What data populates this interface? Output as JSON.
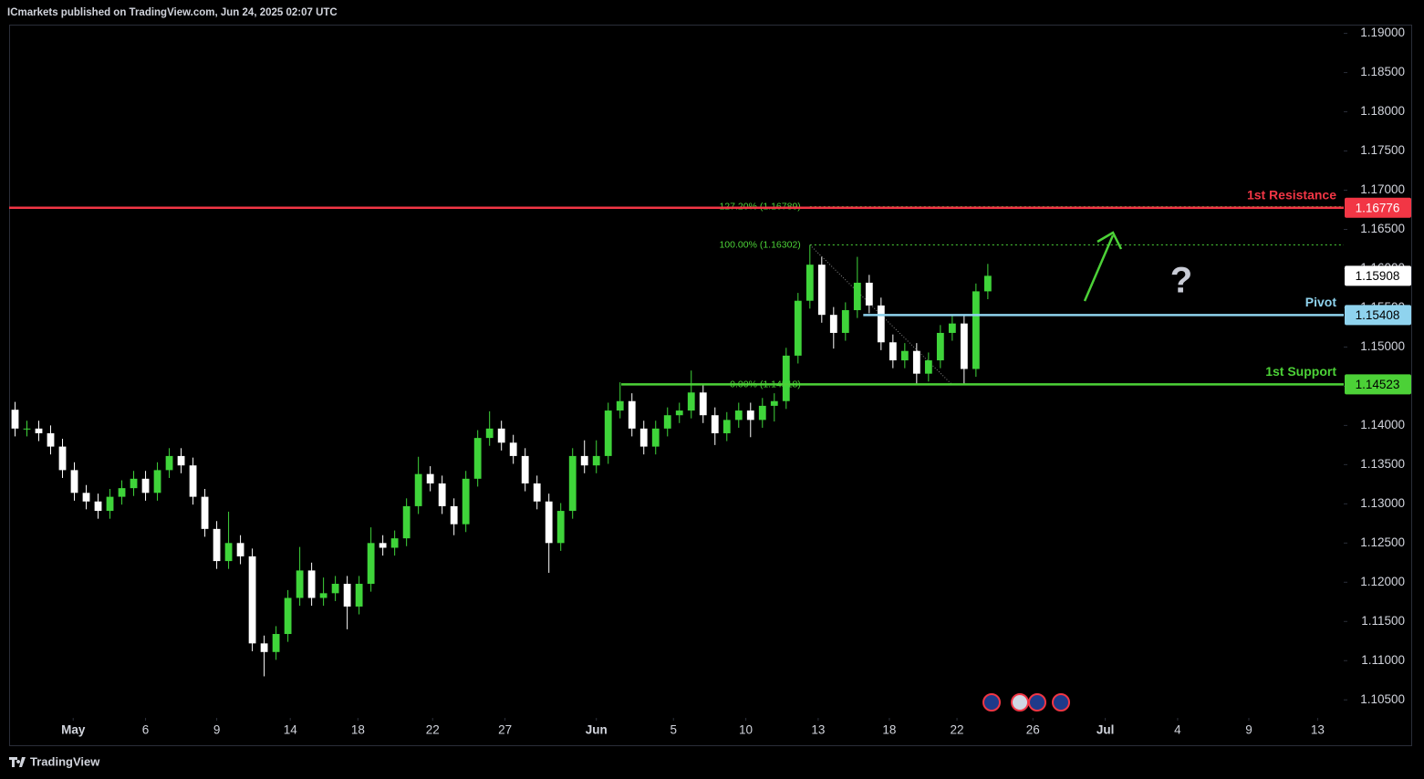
{
  "chart_data": {
    "type": "candlestick",
    "title": "ICmarkets published on TradingView.com, Jun 24, 2025 02:07 UTC",
    "brand": "TradingView",
    "annotation": "?",
    "up_color": "#3fd43a",
    "down_color": "#ffffff",
    "x": [
      0,
      1,
      2,
      3,
      4,
      5,
      6,
      7,
      8,
      9,
      10,
      11,
      12,
      13,
      14,
      15,
      16,
      17,
      18,
      19,
      20,
      21,
      22,
      23,
      24,
      25,
      26,
      27,
      28,
      29,
      30,
      31,
      32,
      33,
      34,
      35,
      36,
      37,
      38,
      39,
      40,
      41,
      42,
      43,
      44,
      45,
      46,
      47,
      48,
      49,
      50,
      51,
      52,
      53,
      54,
      55,
      56,
      57,
      58,
      59,
      60,
      61,
      62,
      63,
      64,
      65,
      66,
      67,
      68,
      69,
      70,
      71,
      72,
      73,
      74,
      75,
      76,
      77,
      78,
      79,
      80,
      81,
      82
    ],
    "open": [
      1.142,
      1.1396,
      1.1396,
      1.139,
      1.1373,
      1.1343,
      1.1314,
      1.1303,
      1.1291,
      1.1309,
      1.132,
      1.1332,
      1.1314,
      1.1343,
      1.1361,
      1.1349,
      1.1309,
      1.1268,
      1.1227,
      1.125,
      1.1233,
      1.1122,
      1.1111,
      1.1134,
      1.118,
      1.1215,
      1.118,
      1.1186,
      1.1198,
      1.1169,
      1.1198,
      1.125,
      1.1244,
      1.1256,
      1.1297,
      1.1338,
      1.1326,
      1.1297,
      1.1274,
      1.1332,
      1.1384,
      1.1396,
      1.1378,
      1.1361,
      1.1326,
      1.1303,
      1.125,
      1.1291,
      1.1361,
      1.1349,
      1.1361,
      1.1419,
      1.1431,
      1.1396,
      1.1373,
      1.1396,
      1.1413,
      1.1419,
      1.1442,
      1.1413,
      1.139,
      1.1407,
      1.1419,
      1.1407,
      1.1425,
      1.1431,
      1.1489,
      1.1559,
      1.1605,
      1.1541,
      1.1518,
      1.1547,
      1.1582,
      1.1553,
      1.1506,
      1.1483,
      1.1495,
      1.1466,
      1.1483,
      1.1518,
      1.153,
      1.1472,
      1.1571
    ],
    "high": [
      1.143,
      1.1406,
      1.1406,
      1.14,
      1.1383,
      1.1353,
      1.1324,
      1.1313,
      1.1319,
      1.133,
      1.1342,
      1.1342,
      1.1353,
      1.1371,
      1.1371,
      1.1359,
      1.1319,
      1.1278,
      1.129,
      1.126,
      1.1243,
      1.1132,
      1.1144,
      1.119,
      1.1245,
      1.1225,
      1.1206,
      1.1208,
      1.1208,
      1.1208,
      1.127,
      1.126,
      1.1266,
      1.1307,
      1.136,
      1.1348,
      1.1336,
      1.1307,
      1.1342,
      1.1394,
      1.1418,
      1.1406,
      1.1388,
      1.1371,
      1.1336,
      1.1313,
      1.1301,
      1.1371,
      1.1381,
      1.1381,
      1.1429,
      1.1455,
      1.1441,
      1.1406,
      1.1406,
      1.1423,
      1.1429,
      1.147,
      1.1452,
      1.1423,
      1.1417,
      1.1429,
      1.1429,
      1.1435,
      1.1441,
      1.1499,
      1.1569,
      1.163,
      1.1615,
      1.1551,
      1.1557,
      1.1615,
      1.1592,
      1.1563,
      1.1516,
      1.1505,
      1.1505,
      1.1493,
      1.1528,
      1.1541,
      1.154,
      1.1581,
      1.1606
    ],
    "low": [
      1.1386,
      1.1386,
      1.138,
      1.1363,
      1.1333,
      1.1304,
      1.1293,
      1.1281,
      1.1281,
      1.1299,
      1.131,
      1.1304,
      1.1304,
      1.1333,
      1.1339,
      1.1299,
      1.1258,
      1.1217,
      1.1217,
      1.1223,
      1.1112,
      1.108,
      1.1101,
      1.1124,
      1.117,
      1.117,
      1.117,
      1.1176,
      1.114,
      1.1159,
      1.1188,
      1.1234,
      1.1234,
      1.1246,
      1.1287,
      1.1316,
      1.1287,
      1.126,
      1.1264,
      1.1322,
      1.1374,
      1.1368,
      1.1351,
      1.1316,
      1.1293,
      1.1212,
      1.124,
      1.1281,
      1.1339,
      1.1339,
      1.1351,
      1.1409,
      1.1386,
      1.1363,
      1.1363,
      1.1386,
      1.1403,
      1.1409,
      1.1403,
      1.1375,
      1.138,
      1.1397,
      1.1385,
      1.1397,
      1.1405,
      1.1421,
      1.1479,
      1.1549,
      1.1531,
      1.1498,
      1.1508,
      1.1537,
      1.1543,
      1.1496,
      1.1473,
      1.1473,
      1.1452,
      1.1456,
      1.1473,
      1.1508,
      1.1452,
      1.1462,
      1.1561
    ],
    "close": [
      1.1396,
      1.1396,
      1.139,
      1.1373,
      1.1343,
      1.1314,
      1.1303,
      1.1291,
      1.1309,
      1.132,
      1.1332,
      1.1314,
      1.1343,
      1.1361,
      1.1349,
      1.1309,
      1.1268,
      1.1227,
      1.125,
      1.1233,
      1.1122,
      1.1111,
      1.1134,
      1.118,
      1.1215,
      1.118,
      1.1186,
      1.1198,
      1.1169,
      1.1198,
      1.125,
      1.1244,
      1.1256,
      1.1297,
      1.1338,
      1.1326,
      1.1297,
      1.1274,
      1.1332,
      1.1384,
      1.1396,
      1.1378,
      1.1361,
      1.1326,
      1.1303,
      1.125,
      1.1291,
      1.1361,
      1.1349,
      1.1361,
      1.1419,
      1.1431,
      1.1396,
      1.1373,
      1.1396,
      1.1413,
      1.1419,
      1.1442,
      1.1413,
      1.139,
      1.1407,
      1.1419,
      1.1407,
      1.1425,
      1.1431,
      1.1489,
      1.1559,
      1.1605,
      1.1541,
      1.1518,
      1.1547,
      1.1582,
      1.1553,
      1.1506,
      1.1483,
      1.1495,
      1.1466,
      1.1483,
      1.1518,
      1.153,
      1.1472,
      1.1571,
      1.15908
    ],
    "xlim": [
      -0.5,
      112
    ],
    "xticks": [
      {
        "value": 4.9,
        "label": "May"
      },
      {
        "value": 11.0,
        "label": "6"
      },
      {
        "value": 17.0,
        "label": "9"
      },
      {
        "value": 23.2,
        "label": "14"
      },
      {
        "value": 28.9,
        "label": "18"
      },
      {
        "value": 35.2,
        "label": "22"
      },
      {
        "value": 41.3,
        "label": "27"
      },
      {
        "value": 49.0,
        "label": "Jun"
      },
      {
        "value": 55.5,
        "label": "5"
      },
      {
        "value": 61.6,
        "label": "10"
      },
      {
        "value": 67.7,
        "label": "13"
      },
      {
        "value": 73.7,
        "label": "18"
      },
      {
        "value": 79.4,
        "label": "22"
      },
      {
        "value": 85.8,
        "label": "26"
      },
      {
        "value": 91.9,
        "label": "Jul"
      },
      {
        "value": 98.0,
        "label": "4"
      },
      {
        "value": 104.0,
        "label": "9"
      },
      {
        "value": 109.8,
        "label": "13"
      }
    ],
    "ylim": [
      1.1027,
      1.191
    ],
    "yticks": [
      {
        "value": 1.19,
        "label": "1.19000"
      },
      {
        "value": 1.185,
        "label": "1.18500"
      },
      {
        "value": 1.18,
        "label": "1.18000"
      },
      {
        "value": 1.175,
        "label": "1.17500"
      },
      {
        "value": 1.17,
        "label": "1.17000"
      },
      {
        "value": 1.165,
        "label": "1.16500"
      },
      {
        "value": 1.16,
        "label": "1.16000"
      },
      {
        "value": 1.155,
        "label": "1.15500"
      },
      {
        "value": 1.15,
        "label": "1.15000"
      },
      {
        "value": 1.145,
        "label": "1.14500"
      },
      {
        "value": 1.14,
        "label": "1.14000"
      },
      {
        "value": 1.135,
        "label": "1.13500"
      },
      {
        "value": 1.13,
        "label": "1.13000"
      },
      {
        "value": 1.125,
        "label": "1.12500"
      },
      {
        "value": 1.12,
        "label": "1.12000"
      },
      {
        "value": 1.115,
        "label": "1.11500"
      },
      {
        "value": 1.11,
        "label": "1.11000"
      },
      {
        "value": 1.105,
        "label": "1.10500"
      }
    ],
    "fib_levels": [
      {
        "value": 1.16789,
        "label": "127.20% (1.16789)"
      },
      {
        "value": 1.16302,
        "label": "100.00% (1.16302)"
      },
      {
        "value": 1.14518,
        "label": "0.00% (1.14518)"
      }
    ],
    "fib_color": "#4cd137",
    "levels": [
      {
        "name": "1st Resistance",
        "value": 1.16776,
        "color": "#f23645"
      },
      {
        "name": "Pivot",
        "value": 1.15408,
        "color": "#8fd3ee"
      },
      {
        "name": "1st Support",
        "value": 1.14523,
        "color": "#4cd137"
      }
    ],
    "last_price": 1.15908
  }
}
